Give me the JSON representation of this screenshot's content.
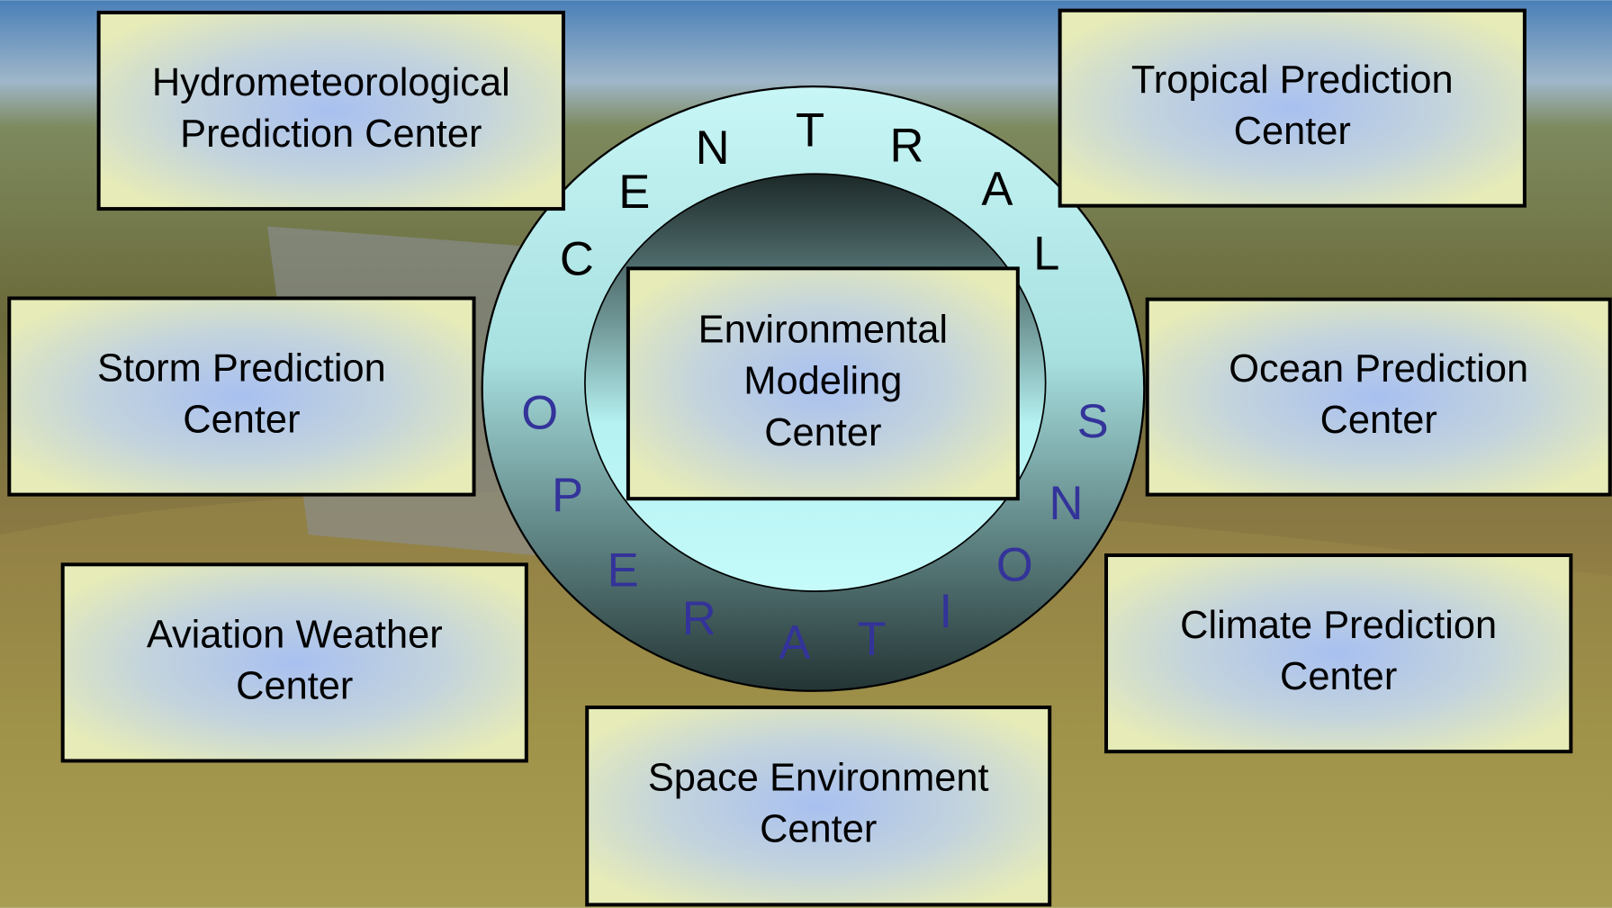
{
  "ring": {
    "top_letters": [
      "C",
      "E",
      "N",
      "T",
      "R",
      "A",
      "L"
    ],
    "bottom_letters": [
      "O",
      "P",
      "E",
      "R",
      "A",
      "T",
      "I",
      "O",
      "N",
      "S"
    ]
  },
  "center_box": {
    "lines": [
      "Environmental",
      "Modeling",
      "Center"
    ]
  },
  "boxes": [
    {
      "lines": [
        "Hydrometeorological",
        "Prediction Center"
      ]
    },
    {
      "lines": [
        "Tropical Prediction",
        "Center"
      ]
    },
    {
      "lines": [
        "Storm Prediction",
        "Center"
      ]
    },
    {
      "lines": [
        "Ocean Prediction",
        "Center"
      ]
    },
    {
      "lines": [
        "Aviation Weather",
        "Center"
      ]
    },
    {
      "lines": [
        "Climate Prediction",
        "Center"
      ]
    },
    {
      "lines": [
        "Space Environment",
        "Center"
      ]
    }
  ]
}
